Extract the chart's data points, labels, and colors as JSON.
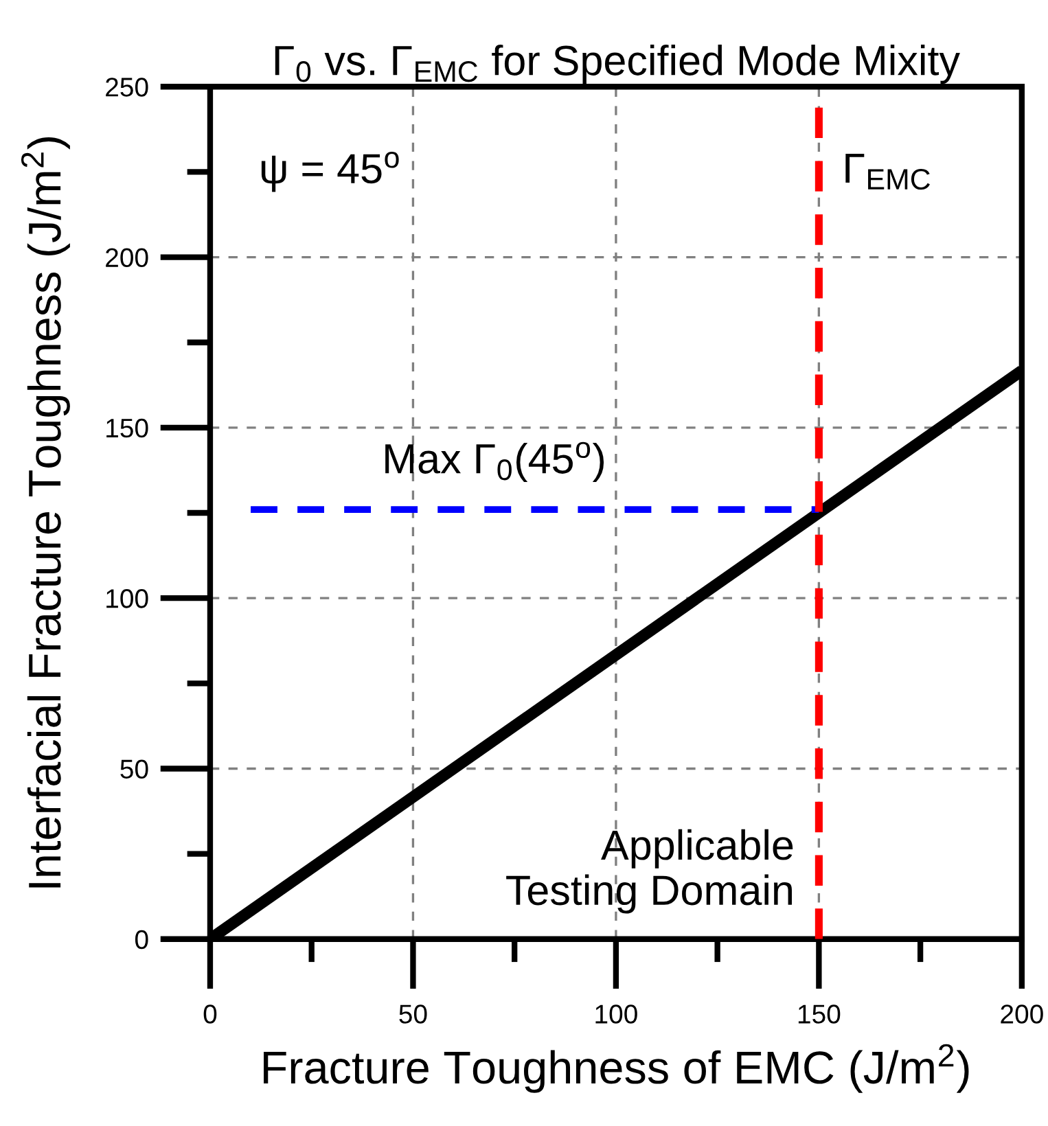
{
  "chart_data": {
    "type": "line",
    "title": "Γ$_{0}$ vs. Γ$_{EMC}$ for Specified Mode Mixity",
    "xlabel": "Fracture Toughness of EMC (J/m$^{2}$)",
    "ylabel": "Interfacial Fracture Toughness (J/m$^{2}$)",
    "series": [
      {
        "x": [
          0,
          200
        ],
        "values": [
          0,
          166.7
        ],
        "color": "#000000",
        "line_style": "solid"
      },
      {
        "x": [
          10,
          150
        ],
        "values": [
          126,
          126
        ],
        "color": "#0000ff",
        "line_style": "dashed"
      }
    ],
    "ref_lines": [
      {
        "axis": "x",
        "value": 150,
        "label": "Γ$_{EMC}$",
        "color": "#ff0000",
        "line_style": "dashed"
      }
    ],
    "annotations": [
      "ψ = 45$^{o}$",
      {
        "text": "Max Γ$_{0}$(45$^{o}$)",
        "x": 70,
        "y": 126
      },
      "Applicable\nTesting Domain"
    ],
    "xlim": [
      0,
      200
    ],
    "ylim": [
      0,
      250
    ],
    "xticks": [
      0,
      50,
      100,
      150,
      200
    ],
    "yticks": [
      0,
      50,
      100,
      150,
      200,
      250
    ],
    "grid": true,
    "legend": false,
    "marker": "none"
  }
}
